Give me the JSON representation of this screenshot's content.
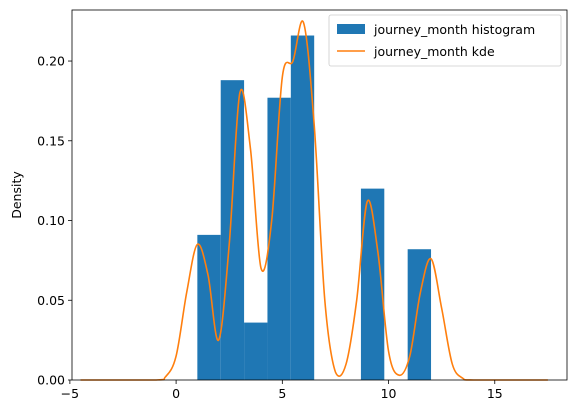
{
  "chart_data": {
    "type": "bar",
    "xlabel": "",
    "ylabel": "Density",
    "xlim": [
      -4.9,
      18.4
    ],
    "ylim": [
      0,
      0.232
    ],
    "xticks": [
      -5,
      0,
      5,
      10,
      15
    ],
    "yticks": [
      0.0,
      0.05,
      0.1,
      0.15,
      0.2
    ],
    "grid": false,
    "legend_position": "top-right",
    "colors": {
      "histogram": "#1f77b4",
      "kde": "#ff7f0e"
    },
    "histogram": {
      "name": "journey_month histogram",
      "bin_edges": [
        1.0,
        2.1,
        3.2,
        4.3,
        5.4,
        6.5,
        7.6,
        8.7,
        9.8,
        10.9,
        12.0
      ],
      "values": [
        0.091,
        0.188,
        0.036,
        0.177,
        0.216,
        0.0,
        0.0,
        0.12,
        0.0,
        0.082
      ]
    },
    "kde": {
      "name": "journey_month kde",
      "x": [
        -4.5,
        -1.0,
        -0.5,
        0.0,
        0.5,
        1.0,
        1.5,
        2.0,
        2.5,
        3.0,
        3.5,
        4.0,
        4.5,
        5.0,
        5.5,
        6.0,
        6.5,
        7.0,
        7.5,
        8.0,
        8.5,
        9.0,
        9.5,
        10.0,
        10.5,
        11.0,
        11.5,
        12.0,
        12.5,
        13.0,
        13.5,
        14.0,
        17.5
      ],
      "y": [
        0.0,
        0.0,
        0.002,
        0.015,
        0.055,
        0.085,
        0.066,
        0.025,
        0.085,
        0.18,
        0.145,
        0.07,
        0.1,
        0.19,
        0.2,
        0.224,
        0.16,
        0.05,
        0.005,
        0.01,
        0.05,
        0.112,
        0.08,
        0.018,
        0.003,
        0.015,
        0.055,
        0.076,
        0.045,
        0.01,
        0.001,
        0.0,
        0.0
      ]
    }
  }
}
